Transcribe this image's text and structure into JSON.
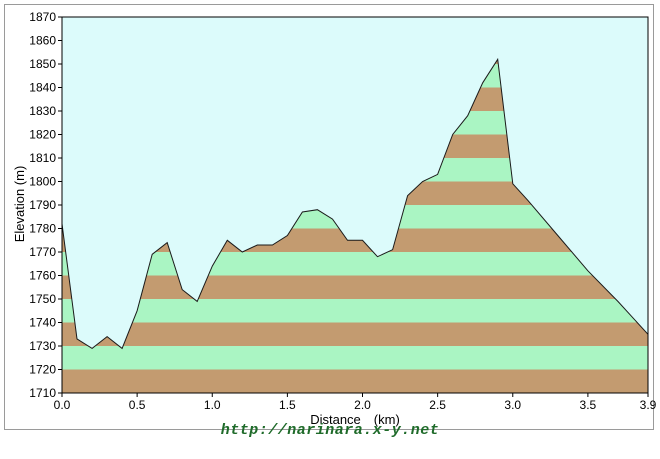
{
  "chart_data": {
    "type": "area",
    "title": "",
    "xlabel": "Distance　(km)",
    "ylabel": "Elevation (m)",
    "xlim": [
      0,
      3.9
    ],
    "ylim": [
      1710,
      1870
    ],
    "xticks": [
      "0.0",
      "0.5",
      "1.0",
      "1.5",
      "2.0",
      "2.5",
      "3.0",
      "3.5",
      "3.9"
    ],
    "xtick_values": [
      0,
      0.5,
      1.0,
      1.5,
      2.0,
      2.5,
      3.0,
      3.5,
      3.9
    ],
    "yticks": [
      "1710",
      "1720",
      "1730",
      "1740",
      "1750",
      "1760",
      "1770",
      "1780",
      "1790",
      "1800",
      "1810",
      "1820",
      "1830",
      "1840",
      "1850",
      "1860",
      "1870"
    ],
    "band_colors": [
      "#c39b70",
      "#aaf5c3"
    ],
    "background_color": "#dcfbfb",
    "series": [
      {
        "x": [
          0,
          0.1,
          0.2,
          0.3,
          0.4,
          0.5,
          0.6,
          0.7,
          0.8,
          0.9,
          1.0,
          1.1,
          1.2,
          1.3,
          1.4,
          1.5,
          1.6,
          1.7,
          1.8,
          1.9,
          2.0,
          2.1,
          2.2,
          2.3,
          2.4,
          2.5,
          2.6,
          2.7,
          2.8,
          2.9,
          3.0,
          3.1,
          3.3,
          3.5,
          3.7,
          3.9
        ],
        "y": [
          1782,
          1733,
          1729,
          1734,
          1729,
          1745,
          1769,
          1774,
          1754,
          1749,
          1764,
          1775,
          1770,
          1773,
          1773,
          1777,
          1787,
          1788,
          1784,
          1775,
          1775,
          1768,
          1771,
          1794,
          1800,
          1803,
          1820,
          1828,
          1842,
          1852,
          1799,
          1792,
          1777,
          1762,
          1749,
          1735
        ]
      }
    ]
  },
  "footer": {
    "url": "http://narinara.x-y.net"
  }
}
